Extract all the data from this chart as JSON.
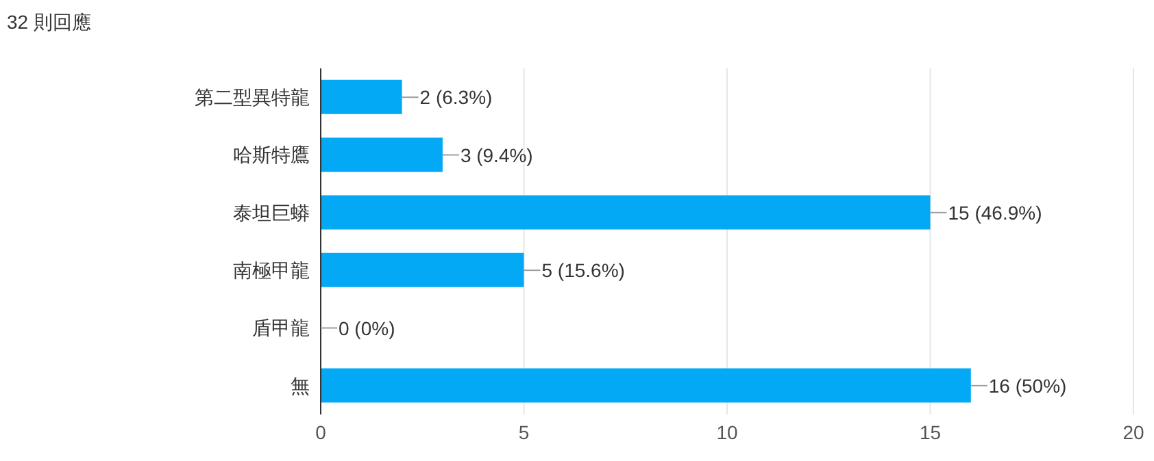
{
  "chart_data": {
    "type": "bar",
    "orientation": "horizontal",
    "title": "32 則回應",
    "categories": [
      "第二型異特龍",
      "哈斯特鷹",
      "泰坦巨蟒",
      "南極甲龍",
      "盾甲龍",
      "無"
    ],
    "values": [
      2,
      3,
      15,
      5,
      0,
      16
    ],
    "value_labels": [
      "2 (6.3%)",
      "3 (9.4%)",
      "15 (46.9%)",
      "5 (15.6%)",
      "0 (0%)",
      "16 (50%)"
    ],
    "color": "#03a9f4",
    "xlim": [
      0,
      20
    ],
    "xticks": [
      0,
      5,
      10,
      15,
      20
    ],
    "grid": "x"
  }
}
